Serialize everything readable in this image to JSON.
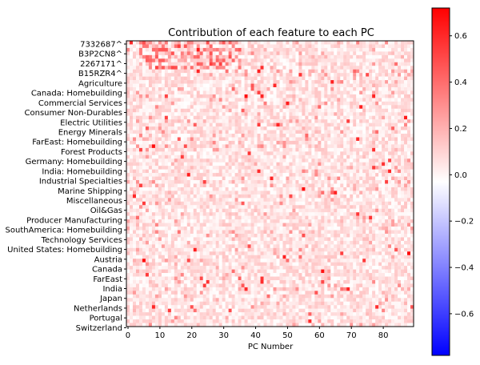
{
  "chart_data": {
    "type": "heatmap",
    "title": "Contribution of each feature to each PC",
    "xlabel": "PC Number",
    "ylabel": "",
    "n_columns": 90,
    "n_rows": 80,
    "x_ticks": [
      0,
      10,
      20,
      30,
      40,
      50,
      60,
      70,
      80
    ],
    "y_tick_labels": [
      "7332687^",
      "B3P2CN8^",
      "2267171^",
      "B15RZR4^",
      "Agriculture",
      "Canada: Homebuilding",
      "Commercial Services",
      "Consumer Non-Durables",
      "Electric Utilities",
      "Energy Minerals",
      "FarEast: Homebuilding",
      "Forest Products",
      "Germany: Homebuilding",
      "India: Homebuilding",
      "Industrial Specialties",
      "Marine Shipping",
      "Miscellaneous",
      "Oil&Gas",
      "Producer Manufacturing",
      "SouthAmerica: Homebuilding",
      "Technology Services",
      "United States: Homebuilding",
      "Austria",
      "Canada",
      "FarEast",
      "India",
      "Japan",
      "Netherlands",
      "Portugal",
      "Switzerland"
    ],
    "y_tick_rows": [
      0,
      3,
      6,
      9,
      12,
      15,
      18,
      21,
      24,
      27,
      30,
      33,
      36,
      39,
      42,
      45,
      48,
      51,
      54,
      57,
      60,
      63,
      66,
      69,
      72,
      75,
      78,
      81,
      84,
      87
    ],
    "colormap": "bwr",
    "vmin": -0.78,
    "vmax": 0.72,
    "colorbar_ticks": [
      0.6,
      0.4,
      0.2,
      0.0,
      -0.2,
      -0.4,
      -0.6
    ],
    "colorbar_tick_labels": [
      "0.6",
      "0.4",
      "0.2",
      "0.0",
      "−0.2",
      "−0.4",
      "−0.6"
    ],
    "grid": false,
    "legend": "colorbar-right"
  }
}
